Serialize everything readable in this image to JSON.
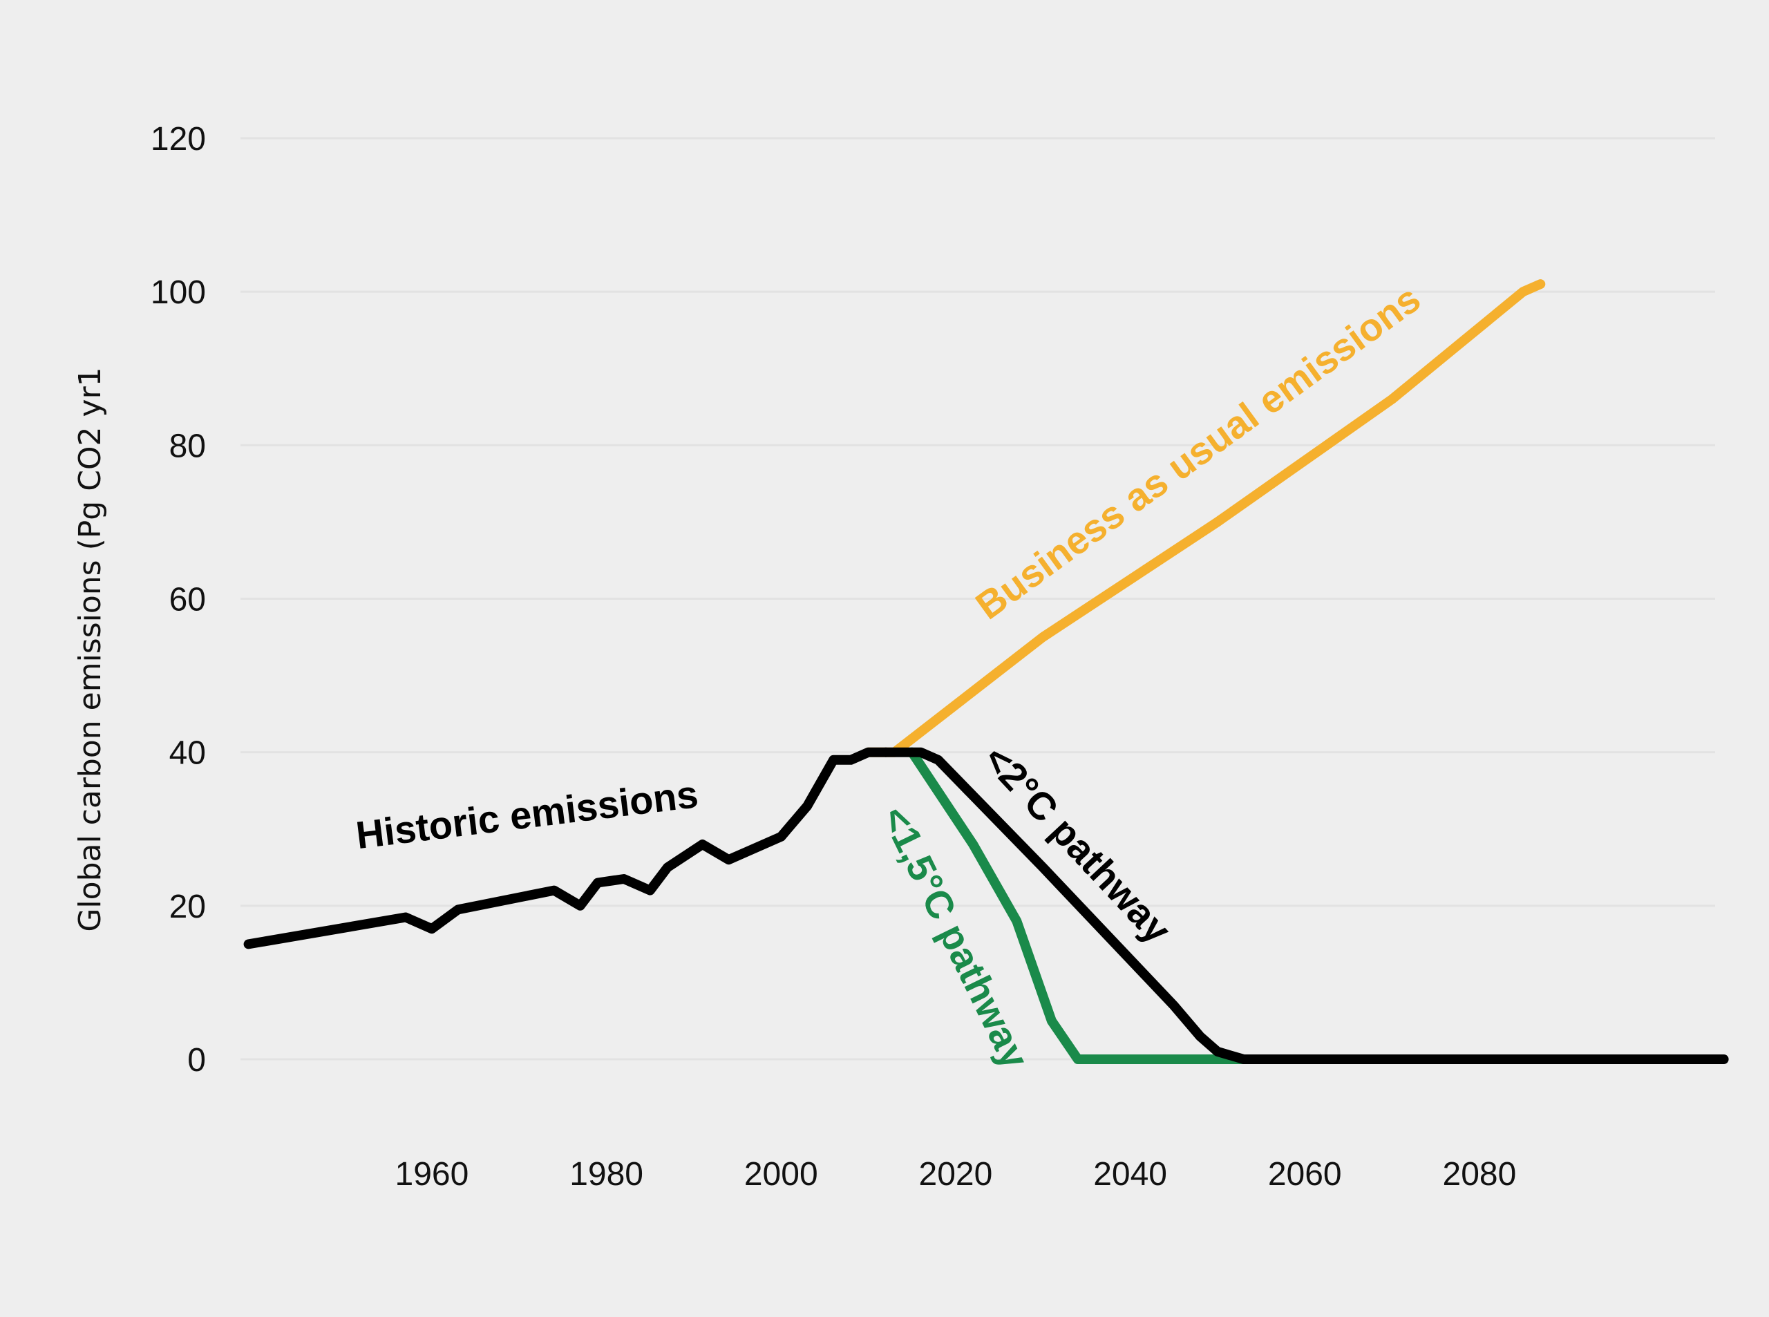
{
  "chart_data": {
    "type": "line",
    "title": "",
    "xlabel": "",
    "ylabel": "Global carbon emissions (Pg CO2 yr1",
    "xlim": [
      1938,
      2107
    ],
    "ylim": [
      0,
      120
    ],
    "y_ticks": [
      "0",
      "20",
      "40",
      "60",
      "80",
      "100",
      "120"
    ],
    "x_ticks": [
      "1960",
      "1980",
      "2000",
      "2020",
      "2040",
      "2060",
      "2080"
    ],
    "grid": true,
    "legend": "none",
    "series": [
      {
        "name": "Historic emissions",
        "color": "#000000",
        "x": [
          1939,
          1957,
          1960,
          1963,
          1974,
          1977,
          1979,
          1982,
          1985,
          1987,
          1991,
          1994,
          1996,
          2000,
          2003,
          2006,
          2008,
          2010,
          2012
        ],
        "y": [
          15,
          18.5,
          17,
          19.5,
          22,
          20,
          23,
          23.5,
          22,
          25,
          28,
          26,
          27,
          29,
          33,
          39,
          39,
          40,
          40
        ]
      },
      {
        "name": "Business as usual emissions",
        "color": "#f5b02e",
        "x": [
          2010,
          2013,
          2030,
          2050,
          2070,
          2085,
          2087
        ],
        "y": [
          40,
          40,
          55,
          70,
          86,
          100,
          101
        ]
      },
      {
        "name": "<2°C pathway",
        "color": "#000000",
        "x": [
          2012,
          2016,
          2018,
          2030,
          2045,
          2048,
          2050,
          2053,
          2108
        ],
        "y": [
          40,
          40,
          39,
          25,
          7,
          3,
          1,
          0,
          0
        ]
      },
      {
        "name": "<1,5°C pathway",
        "color": "#1a8a4a",
        "x": [
          2015,
          2022,
          2027,
          2031,
          2034,
          2053
        ],
        "y": [
          40,
          28,
          18,
          5,
          0,
          0
        ]
      }
    ],
    "annotations": [
      {
        "text": "Historic emissions",
        "color": "#000000"
      },
      {
        "text": "Business as usual emissions",
        "color": "#f5b02e"
      },
      {
        "text": "<2°C pathway",
        "color": "#000000"
      },
      {
        "text": "<1,5°C pathway",
        "color": "#1a8a4a"
      }
    ]
  }
}
